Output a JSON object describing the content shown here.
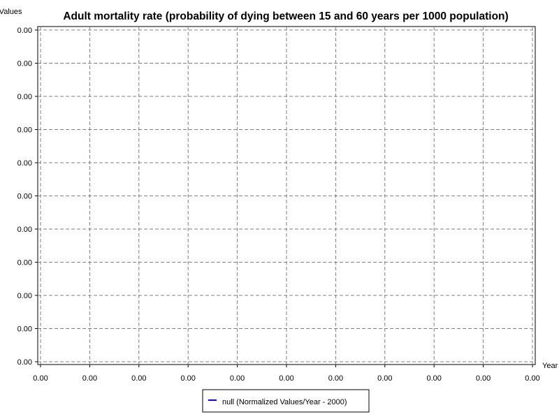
{
  "chart_data": {
    "type": "line",
    "title": "Adult mortality rate (probability of dying between 15 and 60 years per 1000 population)",
    "ylabel": "Normalized Values",
    "xlabel": "Year",
    "x_tick_labels": [
      "0.00",
      "0.00",
      "0.00",
      "0.00",
      "0.00",
      "0.00",
      "0.00",
      "0.00",
      "0.00",
      "0.00",
      "0.00"
    ],
    "y_tick_labels": [
      "0.00",
      "0.00",
      "0.00",
      "0.00",
      "0.00",
      "0.00",
      "0.00",
      "0.00",
      "0.00",
      "0.00",
      "0.00"
    ],
    "grid": true,
    "legend_position": "bottom-center",
    "series": [
      {
        "name": "null (Normalized Values/Year - 2000)",
        "color": "#0000ff",
        "values": []
      }
    ]
  }
}
